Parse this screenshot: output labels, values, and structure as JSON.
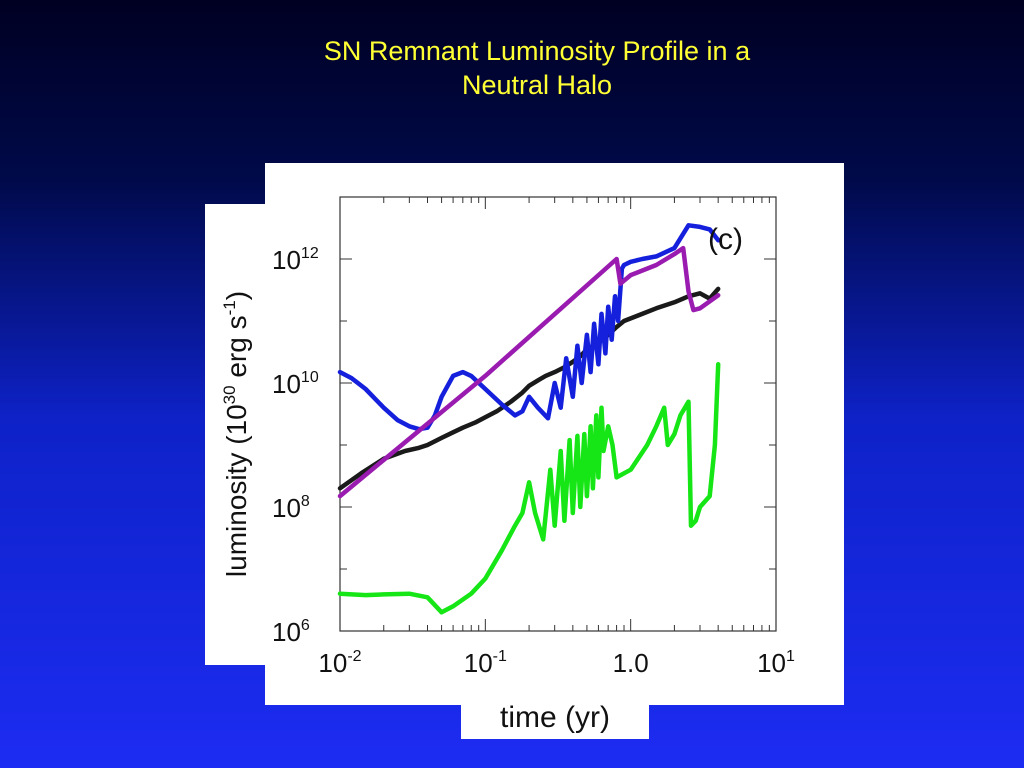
{
  "slide": {
    "title_line1": "SN Remnant Luminosity Profile in a",
    "title_line2": "Neutral Halo"
  },
  "colors": {
    "title": "#ffff33",
    "background_top": "#000022",
    "background_bottom": "#1d2cf2",
    "panel": "#ffffff"
  },
  "chart_data": {
    "type": "line",
    "panel_label": "(c)",
    "xlabel": "time (yr)",
    "ylabel_main": "luminosity (10",
    "ylabel_exp": "30",
    "ylabel_unit": " erg s",
    "ylabel_unit_exp": "-1",
    "ylabel_close": ")",
    "x_scale": "log",
    "y_scale": "log",
    "xlim": [
      0.01,
      10
    ],
    "ylim": [
      1000000,
      10000000000000
    ],
    "xticks": [
      {
        "value": 0.01,
        "base": "10",
        "exp": "-2"
      },
      {
        "value": 0.1,
        "base": "10",
        "exp": "-1"
      },
      {
        "value": 1.0,
        "base": "1.0",
        "exp": ""
      },
      {
        "value": 10,
        "base": "10",
        "exp": "1"
      }
    ],
    "yticks": [
      {
        "value": 1000000,
        "base": "10",
        "exp": "6"
      },
      {
        "value": 100000000,
        "base": "10",
        "exp": "8"
      },
      {
        "value": 10000000000,
        "base": "10",
        "exp": "10"
      },
      {
        "value": 1000000000000,
        "base": "10",
        "exp": "12"
      }
    ],
    "series": [
      {
        "color": "#1a1a1a",
        "x": [
          0.01,
          0.014,
          0.02,
          0.028,
          0.035,
          0.04,
          0.05,
          0.06,
          0.07,
          0.085,
          0.1,
          0.12,
          0.15,
          0.18,
          0.2,
          0.23,
          0.26,
          0.3,
          0.35,
          0.4,
          0.45,
          0.5,
          0.6,
          0.7,
          0.8,
          0.9,
          1.0,
          1.2,
          1.5,
          2.0,
          2.5,
          3.0,
          3.5,
          4.0
        ],
        "y": [
          200000000,
          350000000,
          600000000,
          800000000,
          900000000,
          1000000000,
          1300000000,
          1600000000,
          1900000000,
          2300000000,
          2800000000,
          3500000000,
          5000000000,
          7000000000,
          9000000000,
          11000000000,
          13000000000,
          15000000000,
          18000000000,
          22000000000,
          27000000000,
          35000000000,
          45000000000,
          60000000000,
          80000000000,
          100000000000,
          110000000000,
          130000000000,
          160000000000,
          200000000000,
          250000000000,
          280000000000,
          230000000000,
          330000000000
        ]
      },
      {
        "color": "#1520dd",
        "x": [
          0.01,
          0.012,
          0.015,
          0.02,
          0.025,
          0.03,
          0.035,
          0.04,
          0.045,
          0.05,
          0.06,
          0.07,
          0.08,
          0.1,
          0.13,
          0.16,
          0.18,
          0.2,
          0.23,
          0.27,
          0.3,
          0.33,
          0.36,
          0.4,
          0.43,
          0.46,
          0.5,
          0.53,
          0.56,
          0.6,
          0.63,
          0.67,
          0.7,
          0.74,
          0.78,
          0.82,
          0.87,
          0.9,
          1.0,
          1.2,
          1.5,
          2.0,
          2.5,
          3.0,
          3.5,
          4.0
        ],
        "y": [
          15000000000,
          12000000000,
          8000000000,
          4000000000,
          2500000000,
          2000000000,
          1800000000,
          1900000000,
          3000000000,
          6000000000,
          13000000000,
          15000000000,
          13000000000,
          8000000000,
          4500000000,
          3000000000,
          3500000000,
          6000000000,
          4000000000,
          2700000000,
          10000000000,
          4000000000,
          25000000000,
          6000000000,
          40000000000,
          10000000000,
          60000000000,
          15000000000,
          90000000000,
          20000000000,
          130000000000,
          30000000000,
          170000000000,
          50000000000,
          250000000000,
          100000000000,
          700000000000,
          800000000000,
          900000000000,
          1000000000000,
          1100000000000,
          1500000000000,
          3500000000000,
          3300000000000,
          3000000000000,
          2000000000000
        ]
      },
      {
        "color": "#9a1bb0",
        "x": [
          0.01,
          0.1,
          0.8,
          0.85,
          1.0,
          1.5,
          2.0,
          2.3,
          2.5,
          2.7,
          3.0,
          4.0
        ],
        "y": [
          150000000,
          13000000000,
          1000000000000,
          400000000000,
          550000000000,
          800000000000,
          1200000000000,
          1500000000000,
          300000000000,
          150000000000,
          160000000000,
          260000000000
        ]
      },
      {
        "color": "#16e616",
        "x": [
          0.01,
          0.015,
          0.02,
          0.03,
          0.04,
          0.05,
          0.06,
          0.08,
          0.1,
          0.13,
          0.16,
          0.18,
          0.2,
          0.22,
          0.25,
          0.28,
          0.3,
          0.33,
          0.35,
          0.38,
          0.4,
          0.43,
          0.45,
          0.48,
          0.5,
          0.53,
          0.55,
          0.58,
          0.6,
          0.63,
          0.65,
          0.7,
          0.75,
          0.8,
          1.0,
          1.3,
          1.5,
          1.7,
          1.8,
          2.0,
          2.2,
          2.5,
          2.6,
          2.8,
          3.0,
          3.5,
          3.8,
          4.0
        ],
        "y": [
          4000000,
          3800000,
          3900000,
          4000000,
          3500000,
          2000000,
          2500000,
          4000000,
          7000000,
          20000000,
          50000000,
          80000000,
          250000000,
          80000000,
          30000000,
          400000000,
          50000000,
          800000000,
          60000000,
          1200000000,
          80000000,
          1400000000,
          100000000,
          1500000000,
          150000000,
          2000000000,
          200000000,
          3000000000,
          300000000,
          4000000000,
          800000000,
          2000000000,
          1000000000,
          300000000,
          400000000,
          1000000000,
          2000000000,
          4000000000,
          1000000000,
          1500000000,
          3000000000,
          5000000000,
          50000000,
          60000000,
          100000000,
          150000000,
          1000000000,
          20000000000
        ]
      }
    ]
  }
}
